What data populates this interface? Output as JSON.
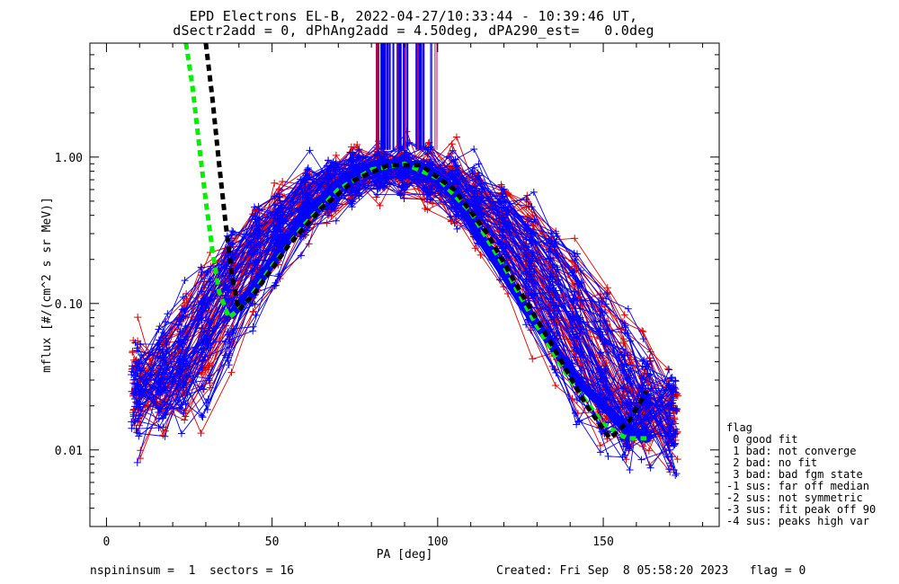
{
  "title_line1": "EPD Electrons EL-B, 2022-04-27/10:33:44 - 10:39:46 UT,",
  "title_line2": "dSectr2add = 0, dPhAng2add = 4.50deg, dPA290_est=   0.0deg",
  "footer_left": "nspininsum =  1  sectors = 16",
  "footer_right": "Created: Fri Sep  8 05:58:20 2023   flag = 0",
  "legend": {
    "title": "flag",
    "items": [
      " 0 good fit",
      " 1 bad: not converge",
      " 2 bad: no fit",
      " 3 bad: bad fgm state",
      "-1 sus: far off median",
      "-2 sus: not symmetric",
      "-3 sus: fit peak off 90",
      "-4 sus: peaks high var"
    ]
  },
  "colors": {
    "red": "#e00000",
    "blue": "#0000ff",
    "green": "#00ee00",
    "black": "#000000",
    "purple": "#b01060"
  },
  "chart_data": {
    "type": "line",
    "xlabel": "PA [deg]",
    "ylabel": "mflux [#/(cm^2 s sr MeV)]",
    "xlim": [
      -5,
      185
    ],
    "ylim": [
      0.003,
      6.0
    ],
    "yscale": "log",
    "xticks": [
      0,
      50,
      100,
      150
    ],
    "yticks": [
      0.01,
      0.1,
      1.0
    ],
    "ytick_labels": [
      "0.01",
      "0.10",
      "1.00"
    ],
    "series": [
      {
        "color": "blue",
        "style": "thick-median",
        "x": [
          38,
          45,
          52,
          60,
          68,
          75,
          82,
          90,
          97,
          105,
          112,
          120,
          127,
          135,
          142,
          150,
          157,
          163
        ],
        "y": [
          0.085,
          0.13,
          0.22,
          0.4,
          0.6,
          0.78,
          0.9,
          0.9,
          0.82,
          0.55,
          0.3,
          0.16,
          0.09,
          0.05,
          0.03,
          0.02,
          0.014,
          0.012
        ]
      },
      {
        "color": "green",
        "style": "dashed-fit",
        "x": [
          24,
          26,
          28,
          30,
          32,
          34,
          37,
          42,
          50,
          60,
          70,
          80,
          90,
          100,
          110,
          120,
          130,
          140,
          150,
          157,
          163
        ],
        "y": [
          6.0,
          3.0,
          1.2,
          0.5,
          0.23,
          0.12,
          0.08,
          0.1,
          0.18,
          0.35,
          0.6,
          0.82,
          0.9,
          0.72,
          0.42,
          0.18,
          0.07,
          0.03,
          0.015,
          0.012,
          0.012
        ]
      },
      {
        "color": "black",
        "style": "dashed-fit",
        "x": [
          30,
          32,
          34,
          36,
          38,
          40,
          45,
          55,
          65,
          75,
          85,
          95,
          105,
          115,
          125,
          135,
          145,
          152,
          158,
          163
        ],
        "y": [
          6.0,
          2.5,
          0.9,
          0.35,
          0.15,
          0.09,
          0.12,
          0.25,
          0.45,
          0.7,
          0.88,
          0.88,
          0.6,
          0.3,
          0.12,
          0.05,
          0.02,
          0.012,
          0.016,
          0.025
        ]
      }
    ]
  }
}
